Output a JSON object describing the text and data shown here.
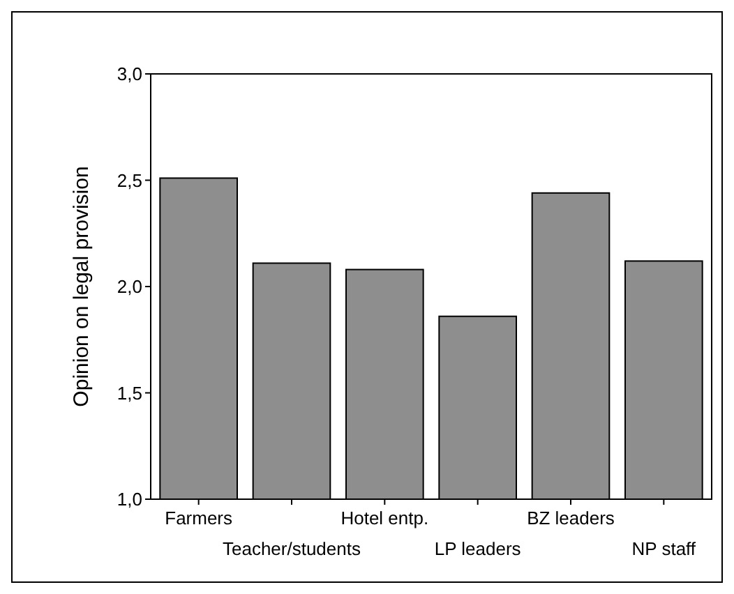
{
  "chart_data": {
    "type": "bar",
    "ylabel": "Opinion on legal provision",
    "categories": [
      "Farmers",
      "Teacher/students",
      "Hotel entp.",
      "LP leaders",
      "BZ leaders",
      "NP staff"
    ],
    "values": [
      2.51,
      2.11,
      2.08,
      1.86,
      2.44,
      2.12
    ],
    "color": "#8e8e8e",
    "ylim": [
      1,
      3
    ],
    "yticks": [
      {
        "value": 1,
        "label": "1,0"
      },
      {
        "value": 1.5,
        "label": "1,5"
      },
      {
        "value": 2,
        "label": "2,0"
      },
      {
        "value": 2.5,
        "label": "2,5"
      },
      {
        "value": 3,
        "label": "3,0"
      }
    ],
    "grid": false
  }
}
